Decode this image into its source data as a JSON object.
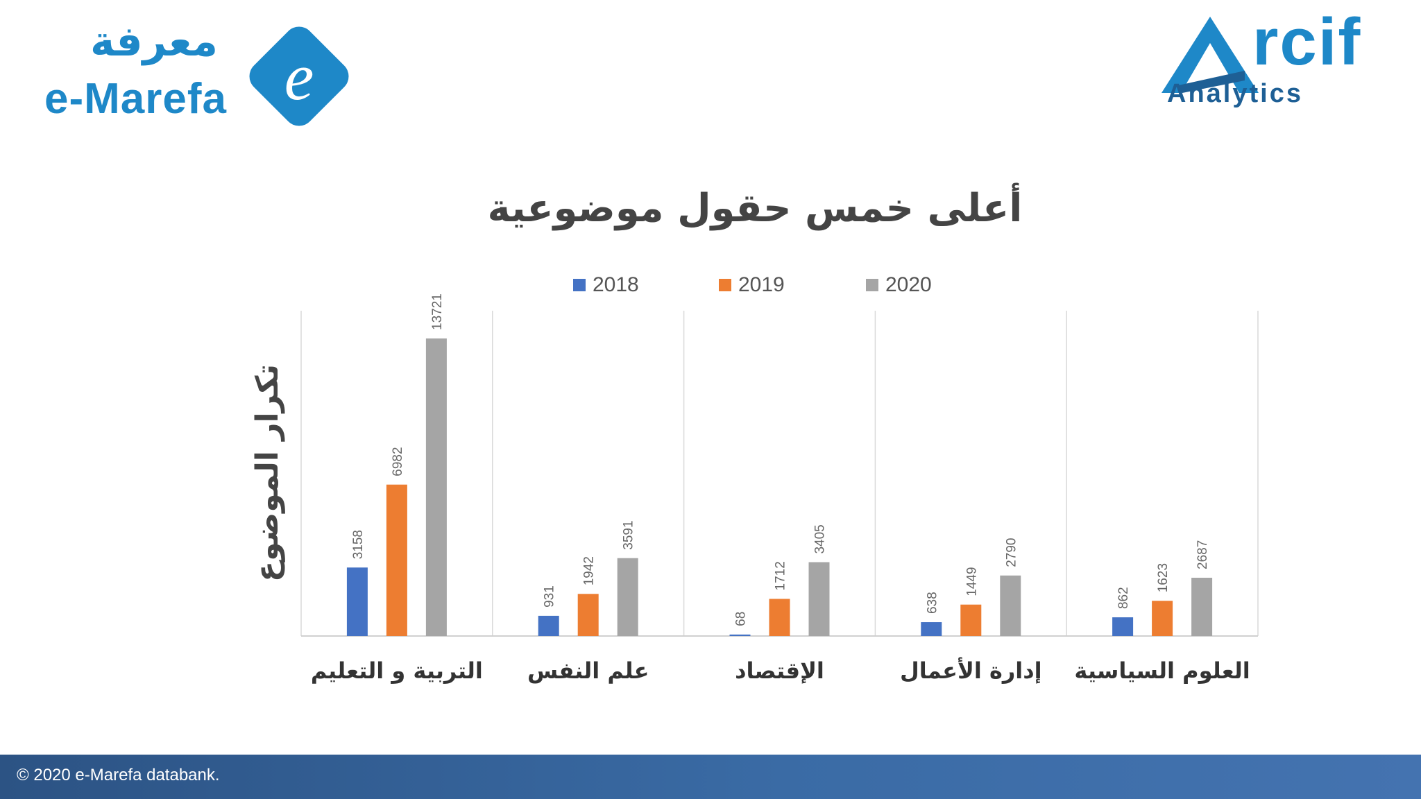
{
  "logos": {
    "left_arabic": "معرفة",
    "left_english": "e-Marefa",
    "left_icon_letter": "e",
    "right_word": "rcif",
    "right_sub": "Analytics"
  },
  "footer": {
    "copyright": "© 2020 e-Marefa databank."
  },
  "colors": {
    "series_2018": "#4472c4",
    "series_2019": "#ed7d31",
    "series_2020": "#a5a5a5",
    "brand_blue": "#1e88c8",
    "footer_blue": "#3a6ba5"
  },
  "chart_data": {
    "type": "bar",
    "title": "أعلى خمس حقول موضوعية",
    "ylabel": "تكرار الموضوع",
    "xlabel": "",
    "legend_position": "top",
    "grid": "vertical category separators",
    "ylim": [
      0,
      15000
    ],
    "categories": [
      "التربية و التعليم",
      "علم النفس",
      "الإقتصاد",
      "إدارة الأعمال",
      "العلوم السياسية"
    ],
    "series": [
      {
        "name": "2018",
        "values": [
          3158,
          931,
          68,
          638,
          862
        ]
      },
      {
        "name": "2019",
        "values": [
          6982,
          1942,
          1712,
          1449,
          1623
        ]
      },
      {
        "name": "2020",
        "values": [
          13721,
          3591,
          3405,
          2790,
          2687
        ]
      }
    ]
  }
}
